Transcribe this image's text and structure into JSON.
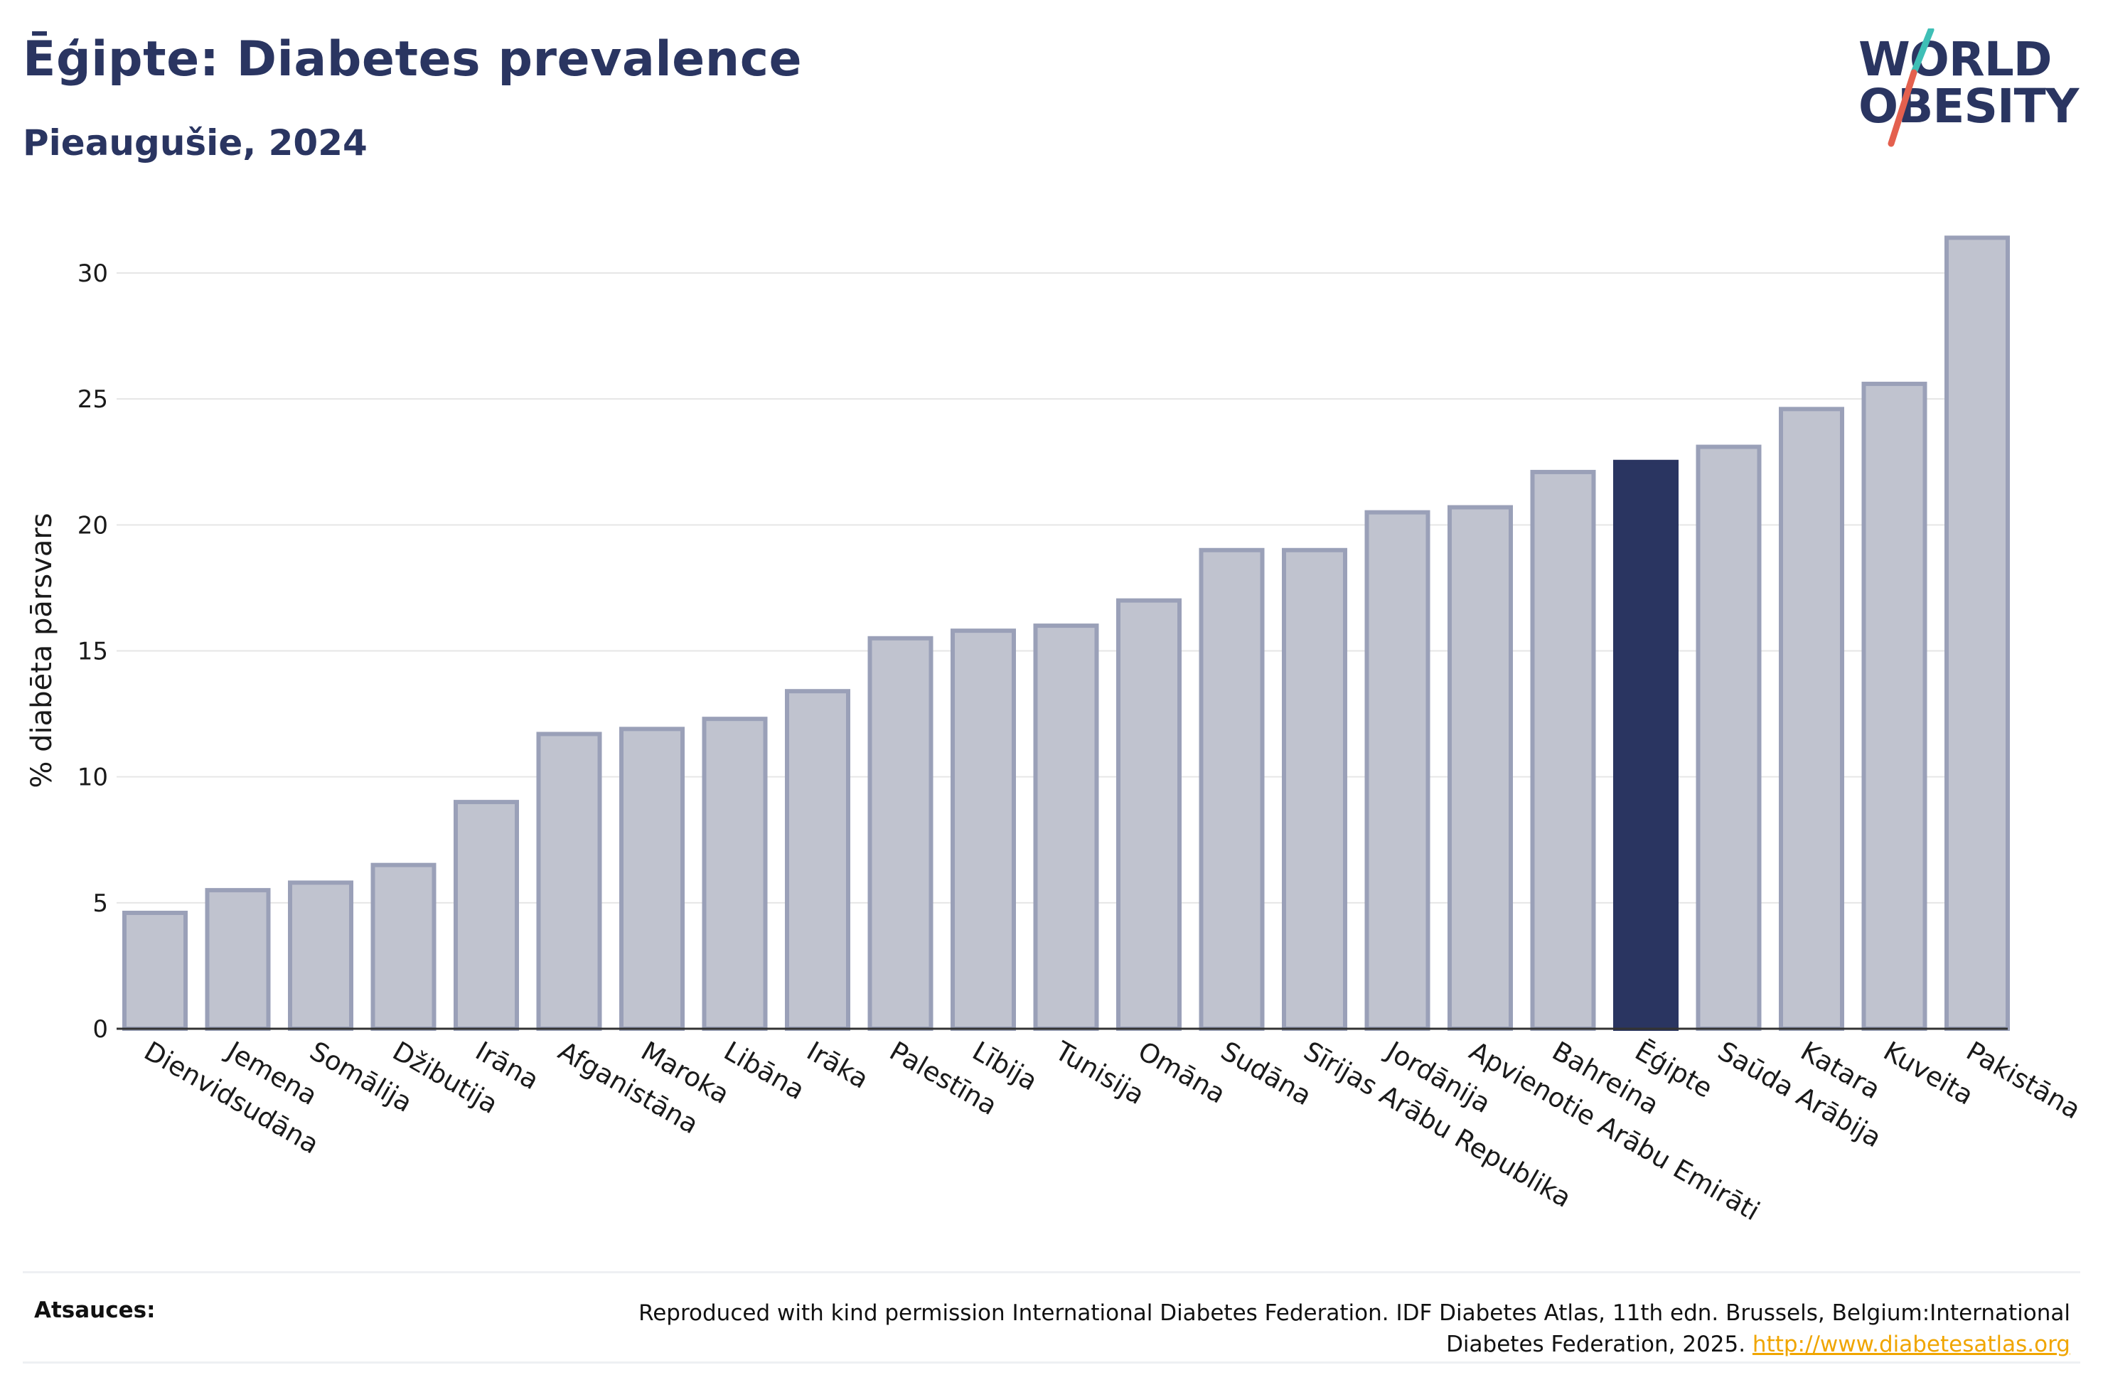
{
  "header": {
    "title": "Ēģipte: Diabetes prevalence",
    "subtitle": "Pieaugušie, 2024"
  },
  "logo": {
    "line1": "WORLD",
    "line2": "OBESITY",
    "accent_colors": [
      "#3fbfb6",
      "#e4604e"
    ]
  },
  "footer": {
    "label": "Atsauces:",
    "text": "Reproduced with kind permission International Diabetes Federation. IDF Diabetes Atlas, 11th edn. Brussels, Belgium:International Diabetes Federation, 2025.",
    "link": "http://www.diabetesatlas.org"
  },
  "colors": {
    "bar": "#c0c3cf",
    "bar_border": "#9aa0b8",
    "highlight": "#2a3561",
    "grid": "#e6e6e6"
  },
  "chart_data": {
    "type": "bar",
    "title": "Ēģipte: Diabetes prevalence",
    "subtitle": "Pieaugušie, 2024",
    "xlabel": "",
    "ylabel": "% diabēta pārsvars",
    "ylim": [
      0,
      32
    ],
    "yticks": [
      0,
      5,
      10,
      15,
      20,
      25,
      30
    ],
    "grid": true,
    "highlight": "Ēģipte",
    "categories": [
      "Dienvidsudāna",
      "Jemena",
      "Somālija",
      "Džibutija",
      "Irāna",
      "Afganistāna",
      "Maroka",
      "Libāna",
      "Irāka",
      "Palestīna",
      "Lībija",
      "Tunisija",
      "Omāna",
      "Sudāna",
      "Sīrijas Arābu Republika",
      "Jordānija",
      "Apvienotie Arābu Emirāti",
      "Bahreina",
      "Ēģipte",
      "Saūda Arābija",
      "Katara",
      "Kuveita",
      "Pakistāna"
    ],
    "values": [
      4.6,
      5.5,
      5.8,
      6.5,
      9.0,
      11.7,
      11.9,
      12.3,
      13.4,
      15.5,
      15.8,
      16.0,
      17.0,
      19.0,
      19.0,
      20.5,
      20.7,
      22.1,
      22.5,
      23.1,
      24.6,
      25.6,
      31.4
    ]
  }
}
